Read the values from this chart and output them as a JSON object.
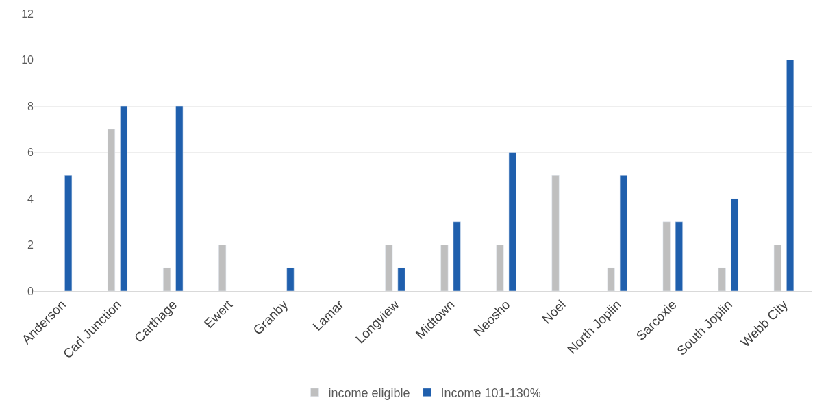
{
  "chart_data": {
    "type": "bar",
    "categories": [
      "Anderson",
      "Carl Junction",
      "Carthage",
      "Ewert",
      "Granby",
      "Lamar",
      "Longview",
      "Midtown",
      "Neosho",
      "Noel",
      "North Joplin",
      "Sarcoxie",
      "South Joplin",
      "Webb City"
    ],
    "series": [
      {
        "name": "income eligible",
        "color": "#bfbfbf",
        "values": [
          null,
          7,
          1,
          2,
          null,
          null,
          2,
          2,
          2,
          5,
          1,
          3,
          1,
          2
        ]
      },
      {
        "name": "Income 101-130%",
        "color": "#1f5fad",
        "values": [
          5,
          8,
          8,
          null,
          1,
          null,
          1,
          3,
          6,
          null,
          5,
          3,
          4,
          10
        ]
      }
    ],
    "ylim": [
      0,
      12
    ],
    "yticks": [
      0,
      2,
      4,
      6,
      8,
      10,
      12
    ],
    "grid": "y",
    "legend": "bottom"
  }
}
